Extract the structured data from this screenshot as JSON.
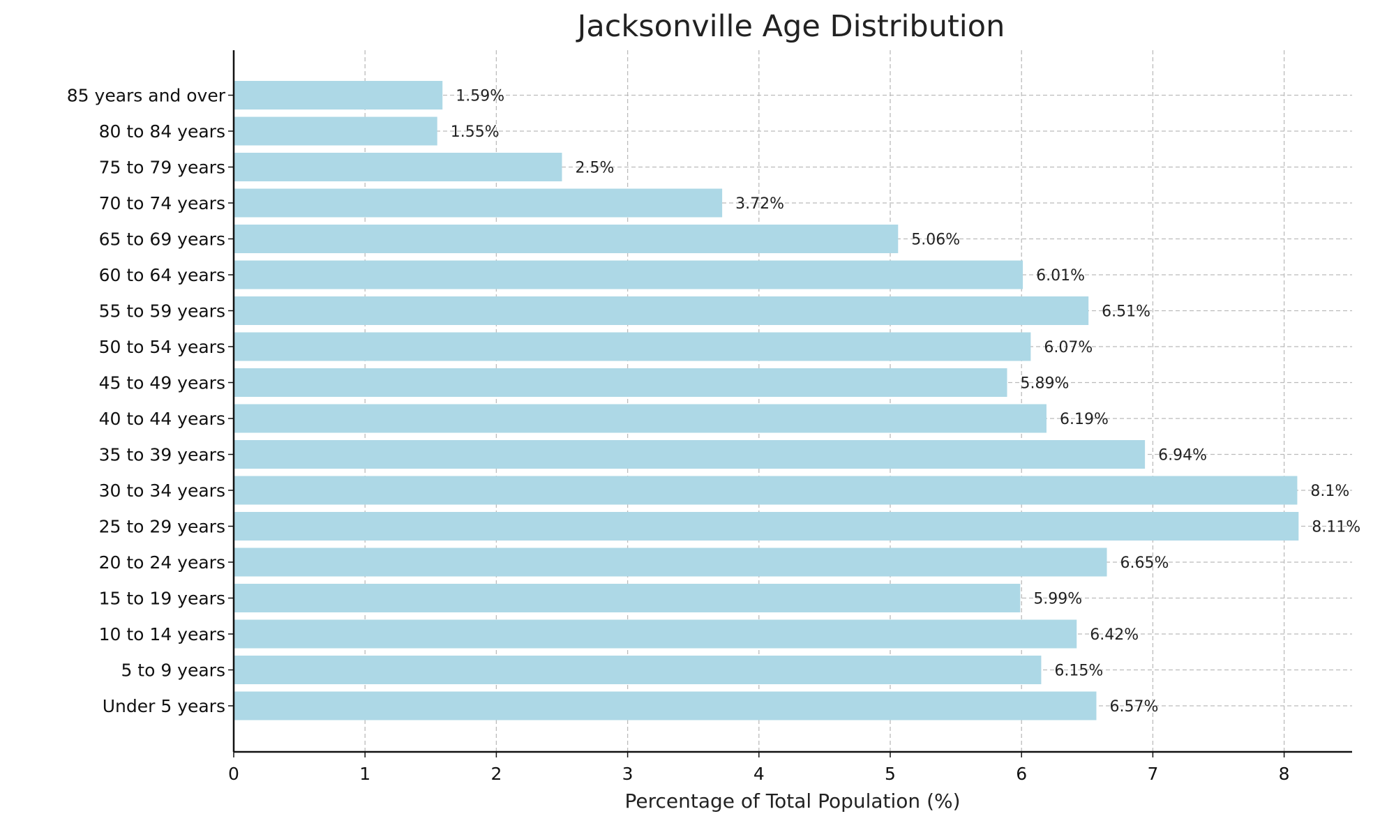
{
  "chart_data": {
    "type": "bar",
    "orientation": "horizontal",
    "title": "Jacksonville Age Distribution",
    "xlabel": "Percentage of Total Population (%)",
    "ylabel": "",
    "xlim": [
      0,
      8.5
    ],
    "xticks": [
      0,
      1,
      2,
      3,
      4,
      5,
      6,
      7,
      8
    ],
    "grid": true,
    "bar_color": "#add8e6",
    "categories": [
      "Under 5 years",
      "5 to 9 years",
      "10 to 14 years",
      "15 to 19 years",
      "20 to 24 years",
      "25 to 29 years",
      "30 to 34 years",
      "35 to 39 years",
      "40 to 44 years",
      "45 to 49 years",
      "50 to 54 years",
      "55 to 59 years",
      "60 to 64 years",
      "65 to 69 years",
      "70 to 74 years",
      "75 to 79 years",
      "80 to 84 years",
      "85 years and over"
    ],
    "values": [
      6.57,
      6.15,
      6.42,
      5.99,
      6.65,
      8.11,
      8.1,
      6.94,
      6.19,
      5.89,
      6.07,
      6.51,
      6.01,
      5.06,
      3.72,
      2.5,
      1.55,
      1.59
    ],
    "data_labels": [
      "6.57%",
      "6.15%",
      "6.42%",
      "5.99%",
      "6.65%",
      "8.11%",
      "8.1%",
      "6.94%",
      "6.19%",
      "5.89%",
      "6.07%",
      "6.51%",
      "6.01%",
      "5.06%",
      "3.72%",
      "2.5%",
      "1.55%",
      "1.59%"
    ]
  }
}
